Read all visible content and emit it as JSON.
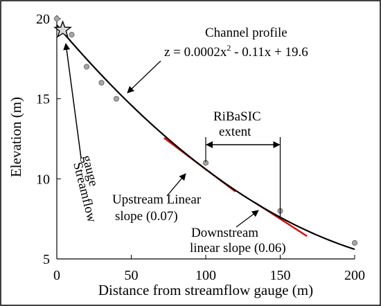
{
  "chart_data": {
    "type": "scatter",
    "title": "",
    "xlabel": "Distance from streamflow gauge (m)",
    "ylabel": "Elevation (m)",
    "xlim": [
      0,
      200
    ],
    "ylim": [
      5,
      20
    ],
    "x_ticks": [
      "0",
      "50",
      "100",
      "150",
      "200"
    ],
    "y_ticks": [
      "5",
      "10",
      "15",
      "20"
    ],
    "grid": false,
    "series": [
      {
        "values": [
          {
            "x": 0,
            "y": 20
          },
          {
            "x": 10,
            "y": 19
          },
          {
            "x": 20,
            "y": 17
          },
          {
            "x": 30,
            "y": 16
          },
          {
            "x": 40,
            "y": 15
          },
          {
            "x": 100,
            "y": 11
          },
          {
            "x": 150,
            "y": 8
          },
          {
            "x": 200,
            "y": 6
          }
        ]
      }
    ],
    "profile_curve": {
      "a": 0.0002,
      "b": -0.11,
      "c": 19.6,
      "x_from": 0,
      "x_to": 200
    },
    "linear_slopes": [
      {
        "x_from": 72,
        "x_to": 120,
        "slope": -0.07,
        "through": [
          100,
          10.6
        ]
      },
      {
        "x_from": 133,
        "x_to": 168,
        "slope": -0.06,
        "through": [
          150,
          7.5
        ]
      }
    ],
    "gauge_marker": {
      "x": 4,
      "y": 19.3
    },
    "extent_range": [
      100,
      150
    ],
    "annotations": {
      "profile_title": "Channel profile",
      "equation_part1": "z = 0.0002x",
      "equation_sup": "2",
      "equation_part2": " - 0.11x + 19.6",
      "ribasic_line1": "RiBaSIC",
      "ribasic_line2": "extent",
      "streamflow_line1": "Streamflow",
      "streamflow_line2": "gauge",
      "upstream_line1": "Upstream Linear",
      "upstream_line2": "slope (0.07)",
      "downstream_line1": "Downstream",
      "downstream_line2": "linear slope (0.06)"
    },
    "colors": {
      "curve": "#000000",
      "linear_fit": "#e00000",
      "points": "#a6a6a6",
      "point_edge": "#6e6e6e"
    }
  }
}
